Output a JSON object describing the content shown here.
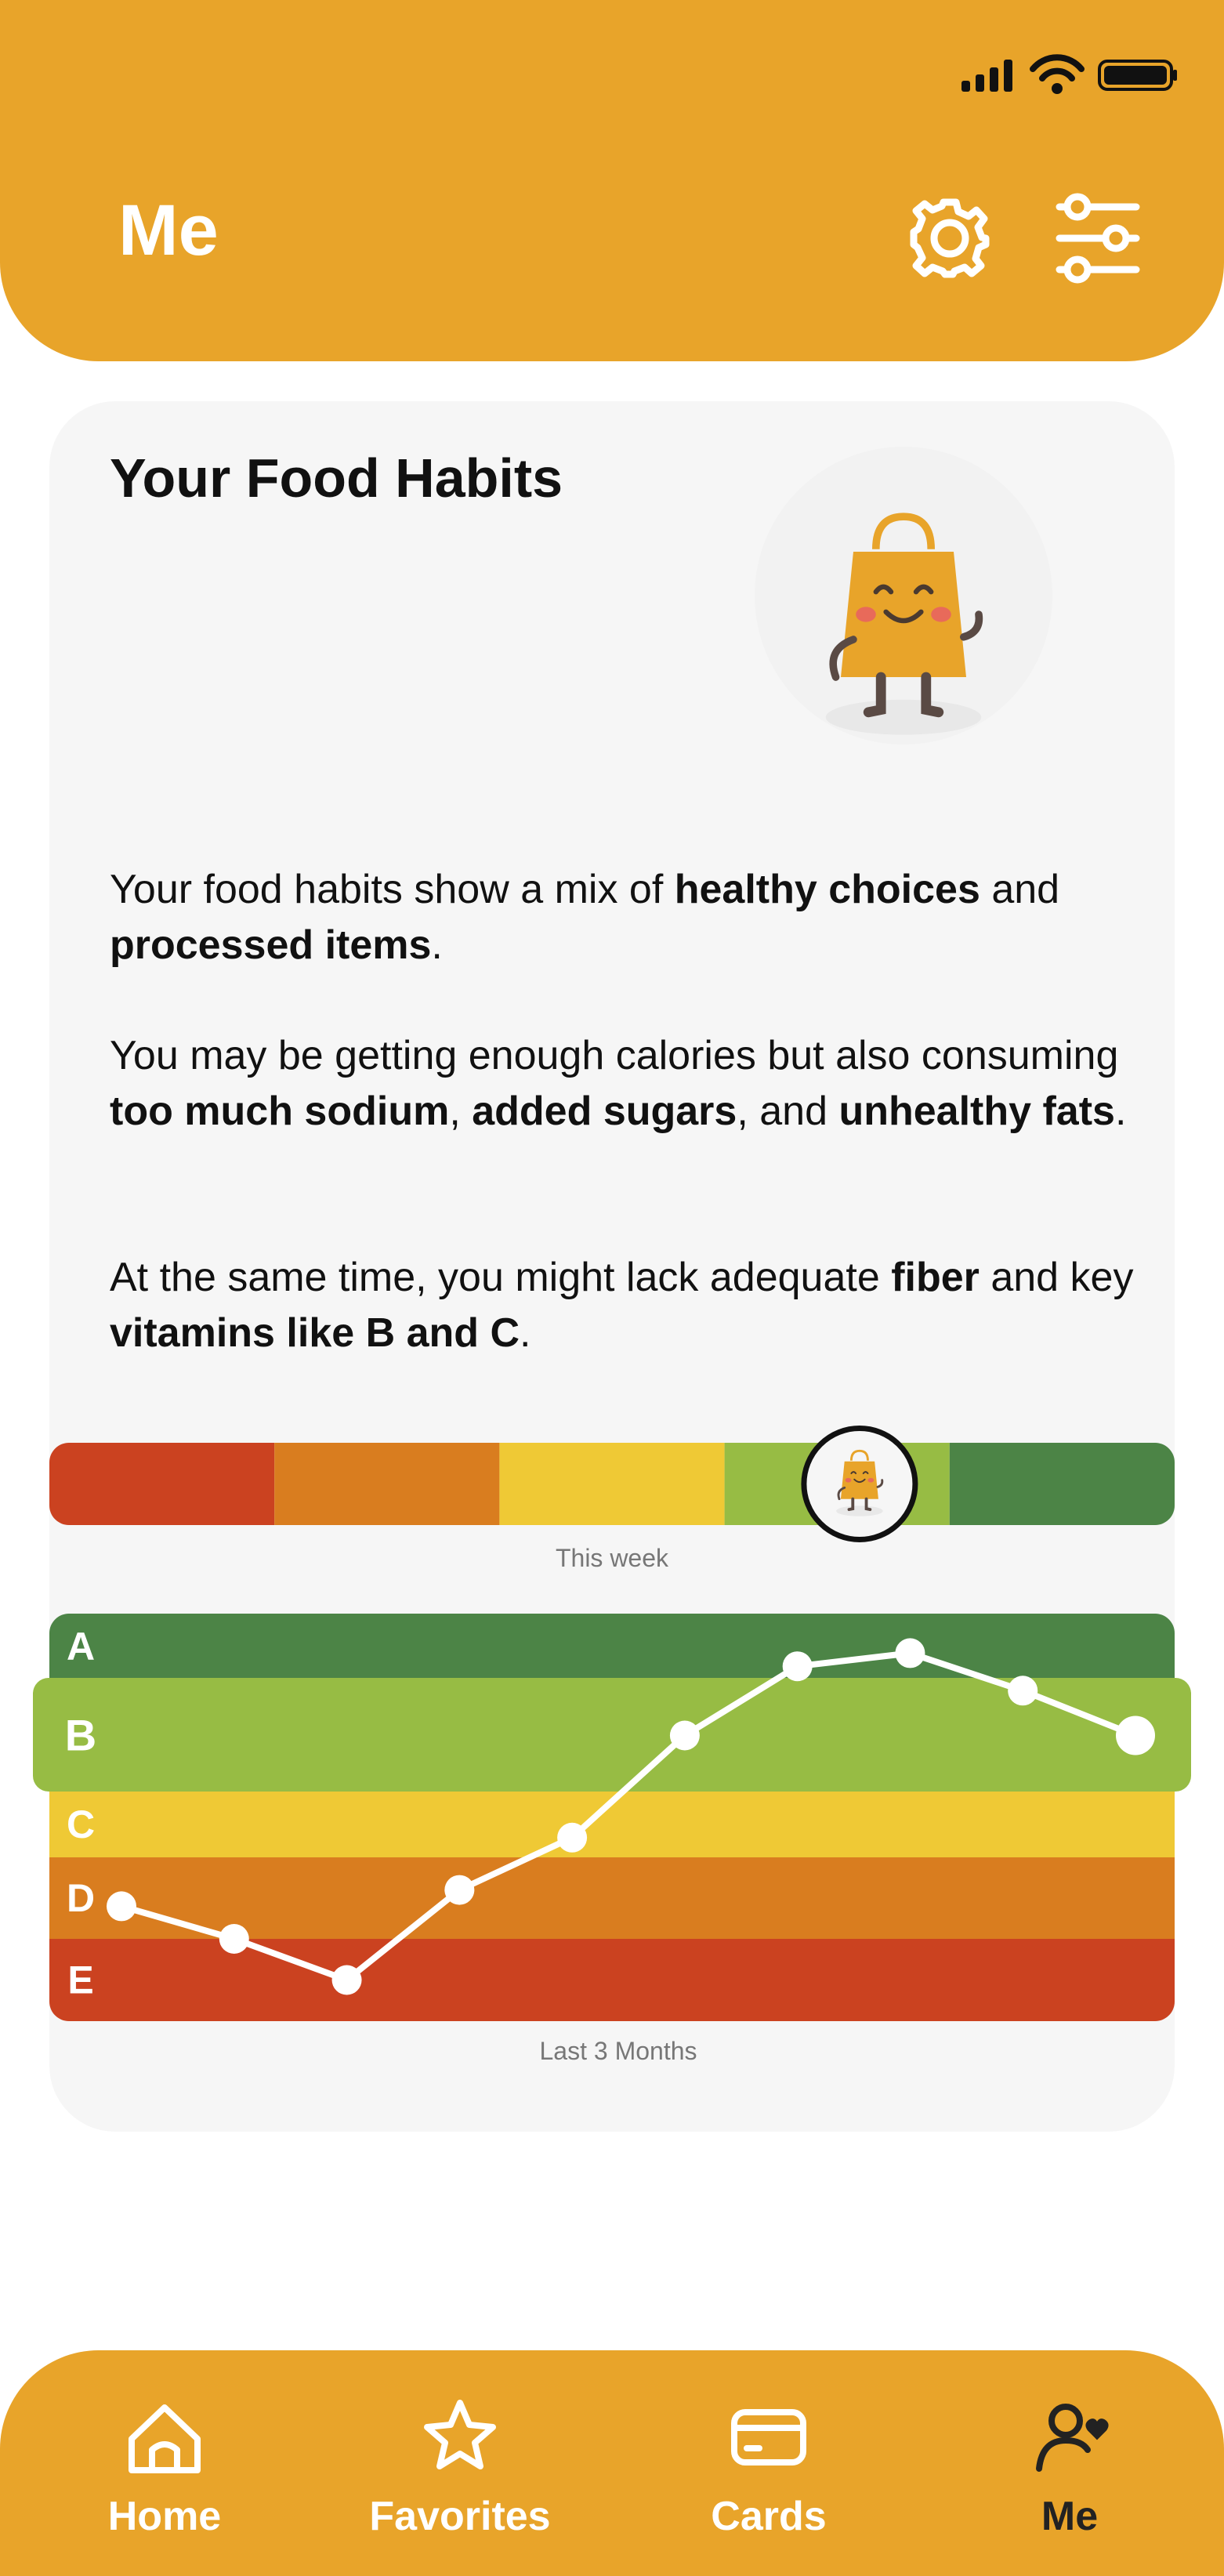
{
  "header": {
    "title": "Me"
  },
  "card": {
    "title": "Your Food Habits",
    "paragraphs": [
      [
        {
          "text": "Your food habits show a mix of "
        },
        {
          "text": "healthy choices",
          "bold": true
        },
        {
          "text": " and "
        },
        {
          "text": "processed items",
          "bold": true
        },
        {
          "text": "."
        }
      ],
      [
        {
          "text": "You may be getting enough calories but also consuming "
        },
        {
          "text": "too much sodium",
          "bold": true
        },
        {
          "text": ", "
        },
        {
          "text": "added sugars",
          "bold": true
        },
        {
          "text": ", and "
        },
        {
          "text": "unhealthy fats",
          "bold": true
        },
        {
          "text": "."
        }
      ],
      [
        {
          "text": "At the same time, you might lack adequate "
        },
        {
          "text": "fiber",
          "bold": true
        },
        {
          "text": " and key "
        },
        {
          "text": "vitamins like B and C",
          "bold": true
        },
        {
          "text": "."
        }
      ]
    ]
  },
  "chart_data": [
    {
      "type": "gauge",
      "caption": "This week",
      "xlim": [
        0,
        5
      ],
      "value": 3.6,
      "segments": [
        {
          "color": "#cb4220",
          "range": [
            0,
            1
          ]
        },
        {
          "color": "#d97d1f",
          "range": [
            1,
            2
          ]
        },
        {
          "color": "#efc935",
          "range": [
            2,
            3
          ]
        },
        {
          "color": "#97bc44",
          "range": [
            3,
            4
          ]
        },
        {
          "color": "#4c8446",
          "range": [
            4,
            5
          ]
        }
      ]
    },
    {
      "type": "line",
      "caption": "Last 3 Months",
      "ylim": [
        0,
        5
      ],
      "bands": [
        {
          "label": "A",
          "color": "#4c8446",
          "range": [
            4,
            5
          ]
        },
        {
          "label": "B",
          "color": "#97bc44",
          "range": [
            3,
            4
          ]
        },
        {
          "label": "C",
          "color": "#efc935",
          "range": [
            2,
            3
          ]
        },
        {
          "label": "D",
          "color": "#d97d1f",
          "range": [
            1,
            2
          ]
        },
        {
          "label": "E",
          "color": "#cb4220",
          "range": [
            0,
            1
          ]
        }
      ],
      "series": [
        {
          "color": "#ffffff",
          "values": [
            1.4,
            1.0,
            0.5,
            1.6,
            2.3,
            3.5,
            4.2,
            4.4,
            3.9,
            3.5
          ]
        }
      ]
    }
  ],
  "nav": [
    {
      "label": "Home"
    },
    {
      "label": "Favorites"
    },
    {
      "label": "Cards"
    },
    {
      "label": "Me",
      "active": true
    }
  ]
}
